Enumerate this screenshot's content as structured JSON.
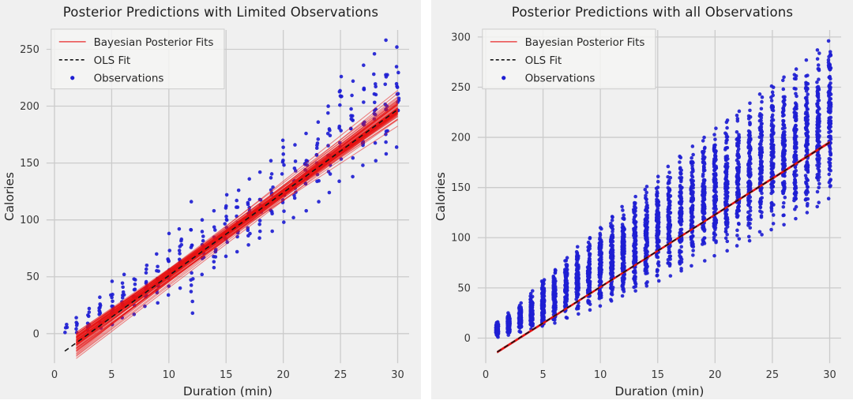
{
  "style": {
    "page_background": "#ffffff",
    "panel_background": "#f0f0f0",
    "grid_color": "#cbcbcb",
    "title_color": "#1f1f1f",
    "text_color": "#262626",
    "tick_label_color": "#383838",
    "observation_color": "#1e1ed2",
    "posterior_color": "#e81212",
    "ols_color": "#141414",
    "legend_background": "#f5f5f3",
    "legend_border": "#cccccc"
  },
  "chart_data": [
    {
      "type": "scatter",
      "title": "Posterior Predictions with Limited Observations",
      "xlabel": "Duration (min)",
      "ylabel": "Calories",
      "xlim": [
        -0.7,
        31
      ],
      "ylim": [
        -26,
        267
      ],
      "xticks": [
        0,
        5,
        10,
        15,
        20,
        25,
        30
      ],
      "yticks": [
        0,
        50,
        100,
        150,
        200,
        250
      ],
      "grid": true,
      "legend": {
        "position": "upper-left",
        "entries": [
          "Bayesian Posterior Fits",
          "OLS Fit",
          "Observations"
        ]
      },
      "posterior_fits": {
        "n_lines": 70,
        "slope_mean": 7.3,
        "slope_sd": 0.33,
        "pivot_x": 15,
        "pivot_value": 87.5,
        "pivot_sd": 3.2,
        "x_range": [
          1.9,
          30
        ]
      },
      "ols_fit": {
        "slope": 7.3,
        "intercept": -22,
        "x_range": [
          0.9,
          30
        ],
        "style": "dashed"
      },
      "observations": {
        "marker": "dot",
        "columns_format": [
          "duration",
          "calories_min",
          "calories_max",
          "n_points"
        ],
        "columns": [
          [
            1,
            1,
            8,
            4
          ],
          [
            2,
            1,
            14,
            6
          ],
          [
            3,
            3,
            22,
            9
          ],
          [
            4,
            5,
            32,
            11
          ],
          [
            5,
            8,
            46,
            12
          ],
          [
            6,
            14,
            52,
            11
          ],
          [
            7,
            17,
            48,
            9
          ],
          [
            8,
            24,
            60,
            12
          ],
          [
            9,
            27,
            70,
            12
          ],
          [
            10,
            34,
            88,
            13
          ],
          [
            11,
            40,
            92,
            12
          ],
          [
            12,
            18,
            116,
            14
          ],
          [
            13,
            52,
            100,
            12
          ],
          [
            14,
            58,
            108,
            12
          ],
          [
            15,
            68,
            122,
            13
          ],
          [
            16,
            72,
            126,
            12
          ],
          [
            17,
            78,
            136,
            12
          ],
          [
            18,
            84,
            142,
            13
          ],
          [
            19,
            90,
            152,
            12
          ],
          [
            20,
            98,
            170,
            13
          ],
          [
            21,
            102,
            166,
            12
          ],
          [
            22,
            108,
            176,
            13
          ],
          [
            23,
            116,
            186,
            12
          ],
          [
            24,
            124,
            200,
            13
          ],
          [
            25,
            134,
            226,
            14
          ],
          [
            26,
            138,
            222,
            13
          ],
          [
            27,
            148,
            236,
            13
          ],
          [
            28,
            152,
            246,
            14
          ],
          [
            29,
            158,
            258,
            14
          ],
          [
            30,
            164,
            252,
            13
          ]
        ]
      }
    },
    {
      "type": "scatter",
      "title": "Posterior Predictions with all Observations",
      "xlabel": "Duration (min)",
      "ylabel": "Calories",
      "xlim": [
        -0.7,
        31
      ],
      "ylim": [
        -25,
        307
      ],
      "xticks": [
        0,
        5,
        10,
        15,
        20,
        25,
        30
      ],
      "yticks": [
        0,
        50,
        100,
        150,
        200,
        250,
        300
      ],
      "grid": true,
      "legend": {
        "position": "upper-left",
        "entries": [
          "Bayesian Posterior Fits",
          "OLS Fit",
          "Observations"
        ]
      },
      "posterior_fits": {
        "n_lines": 40,
        "slope_mean": 7.2,
        "slope_sd": 0.02,
        "pivot_x": 15,
        "pivot_value": 87,
        "pivot_sd": 0.3,
        "x_range": [
          1,
          30
        ]
      },
      "ols_fit": {
        "slope": 7.2,
        "intercept": -21,
        "x_range": [
          1,
          30
        ],
        "style": "dashed"
      },
      "observations": {
        "marker": "dot",
        "points_per_column": 120,
        "columns_format": [
          "duration",
          "calories_min",
          "calories_max"
        ],
        "columns": [
          [
            1,
            1,
            16
          ],
          [
            2,
            3,
            25
          ],
          [
            3,
            6,
            35
          ],
          [
            4,
            9,
            47
          ],
          [
            5,
            12,
            58
          ],
          [
            6,
            15,
            68
          ],
          [
            7,
            20,
            80
          ],
          [
            8,
            24,
            91
          ],
          [
            9,
            28,
            100
          ],
          [
            10,
            32,
            110
          ],
          [
            11,
            37,
            121
          ],
          [
            12,
            42,
            131
          ],
          [
            13,
            47,
            141
          ],
          [
            14,
            52,
            151
          ],
          [
            15,
            57,
            161
          ],
          [
            16,
            62,
            171
          ],
          [
            17,
            67,
            181
          ],
          [
            18,
            72,
            191
          ],
          [
            19,
            77,
            200
          ],
          [
            20,
            82,
            209
          ],
          [
            21,
            87,
            217
          ],
          [
            22,
            92,
            226
          ],
          [
            23,
            97,
            234
          ],
          [
            24,
            103,
            243
          ],
          [
            25,
            108,
            251
          ],
          [
            26,
            113,
            260
          ],
          [
            27,
            119,
            268
          ],
          [
            28,
            125,
            277
          ],
          [
            29,
            131,
            287
          ],
          [
            30,
            139,
            296
          ]
        ]
      }
    }
  ]
}
